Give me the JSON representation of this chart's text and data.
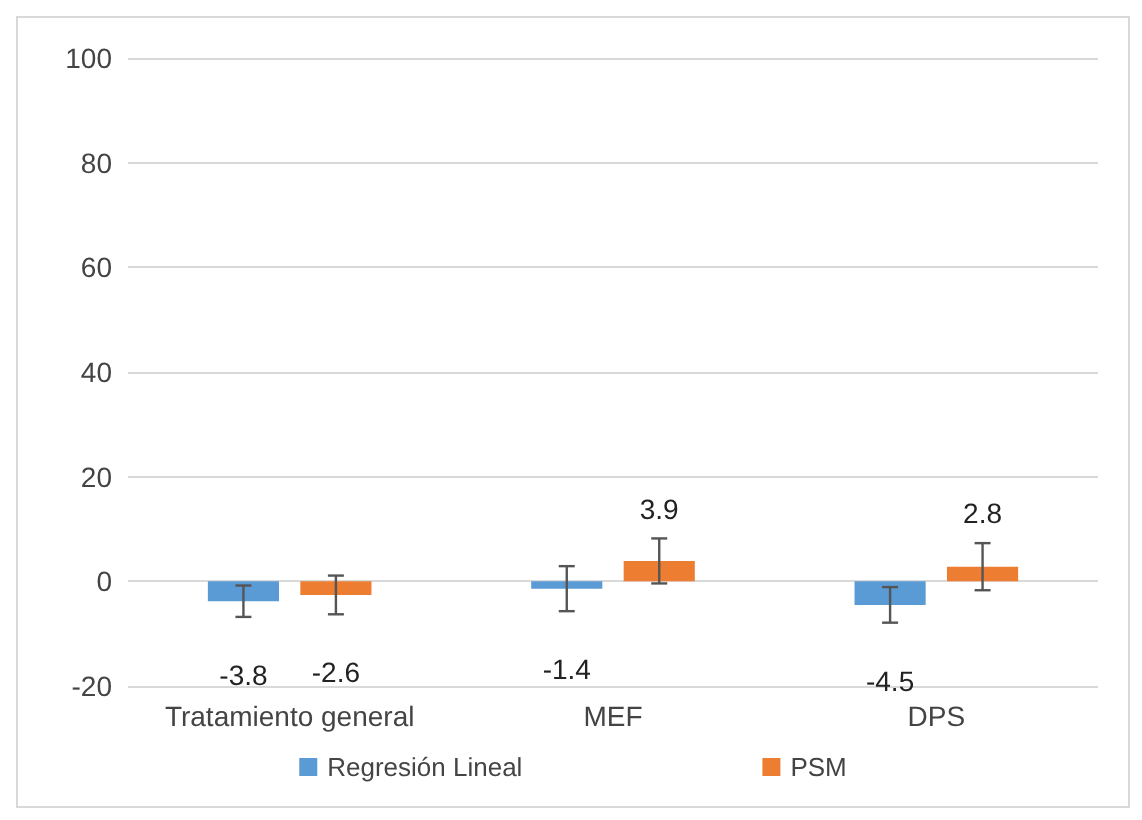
{
  "chart_data": {
    "type": "bar",
    "categories": [
      "Tratamiento general",
      "MEF",
      "DPS"
    ],
    "series": [
      {
        "name": "Regresión Lineal",
        "color": "#5b9bd5",
        "values": [
          -3.8,
          -1.4,
          -4.5
        ],
        "errors": [
          3,
          4.3,
          3.4
        ]
      },
      {
        "name": "PSM",
        "color": "#ed7d31",
        "values": [
          -2.6,
          3.9,
          2.8
        ],
        "errors": [
          3.7,
          4.3,
          4.5
        ]
      }
    ],
    "ylim": [
      -20,
      100
    ],
    "yticks": [
      -20,
      0,
      20,
      40,
      60,
      80,
      100
    ],
    "grid": "y",
    "legend": "bottom",
    "data_labels": true
  }
}
